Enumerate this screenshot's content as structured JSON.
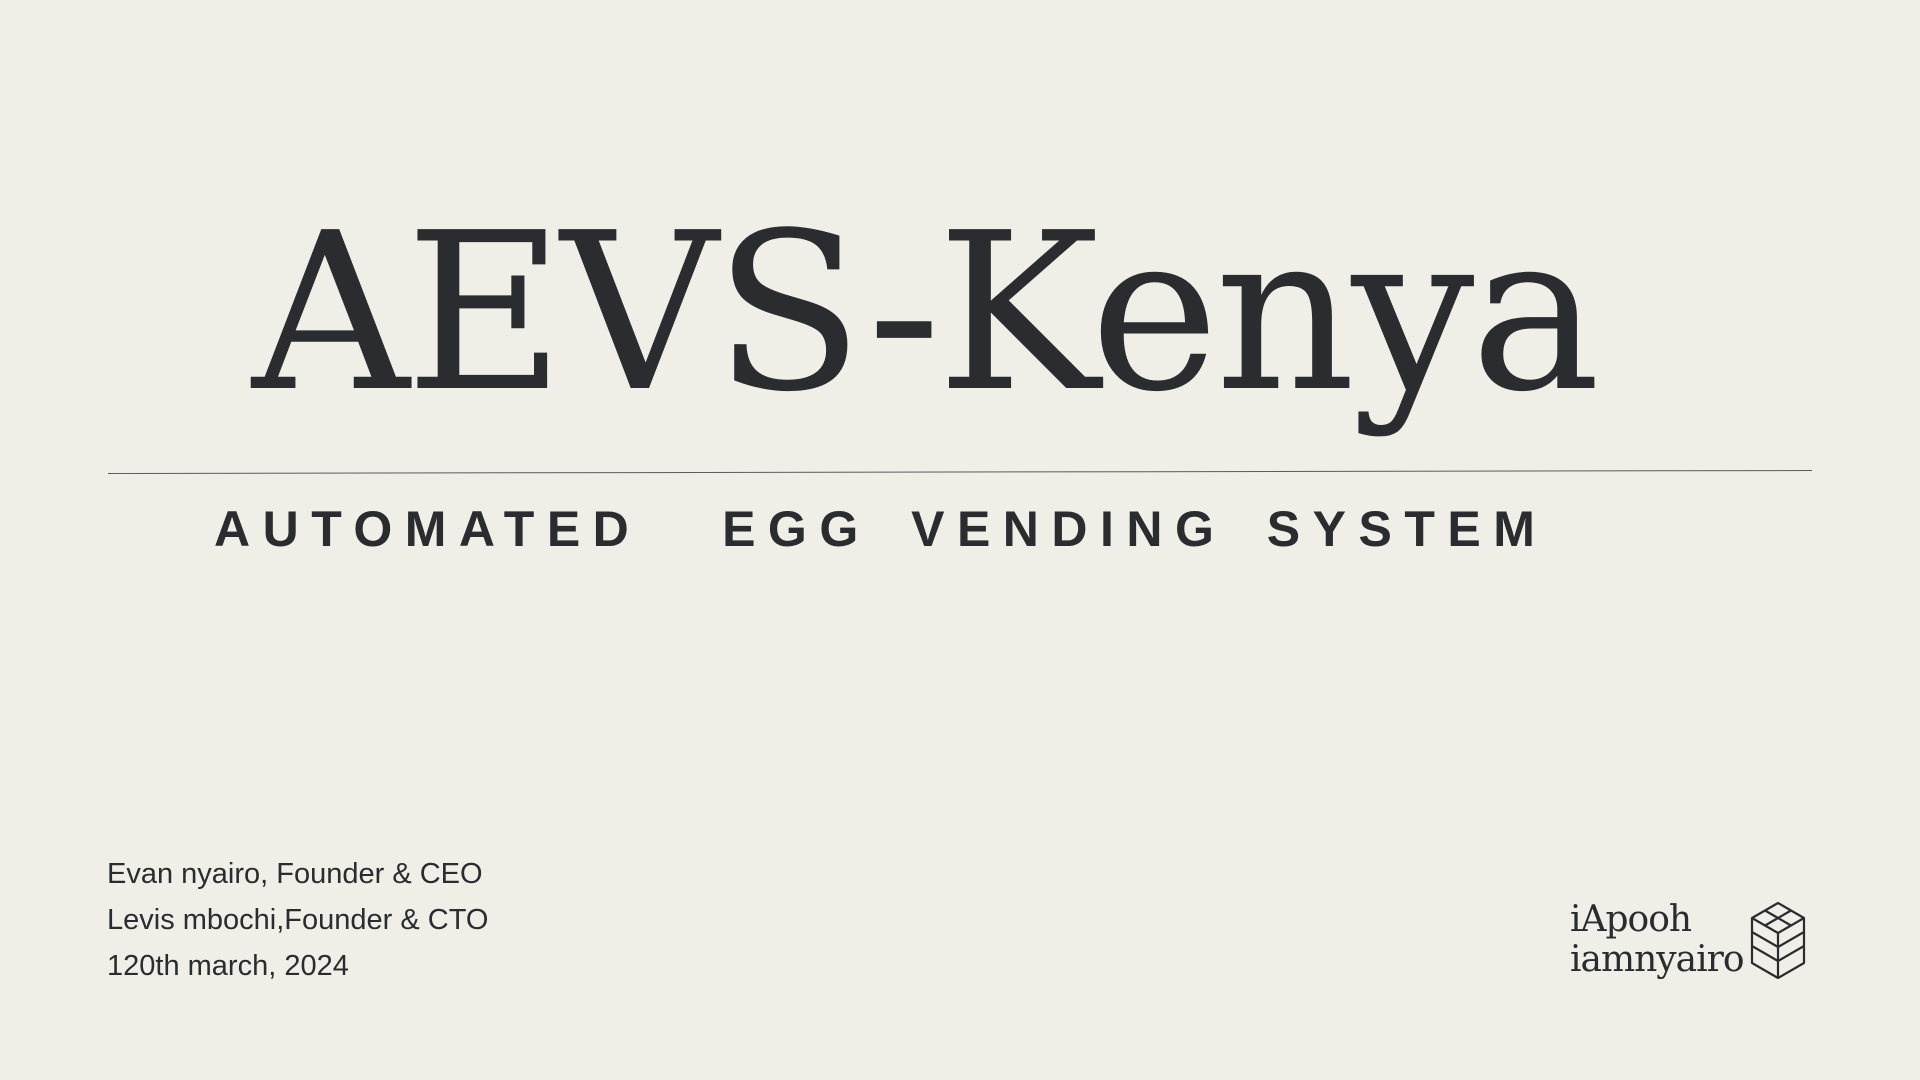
{
  "slide": {
    "title": "AEVS-Kenya",
    "subtitle": "AUTOMATED  EGG VENDING SYSTEM"
  },
  "credits": {
    "line1": "Evan nyairo, Founder & CEO",
    "line2": "Levis mbochi,Founder & CTO",
    "line3": "120th march, 2024"
  },
  "brand": {
    "line1": "iApooh",
    "line2": "iamnyairo",
    "logo_icon": "cube-logo-icon"
  },
  "colors": {
    "background": "#efeee7",
    "text": "#2b2c30",
    "rule": "#5a5b5e"
  }
}
